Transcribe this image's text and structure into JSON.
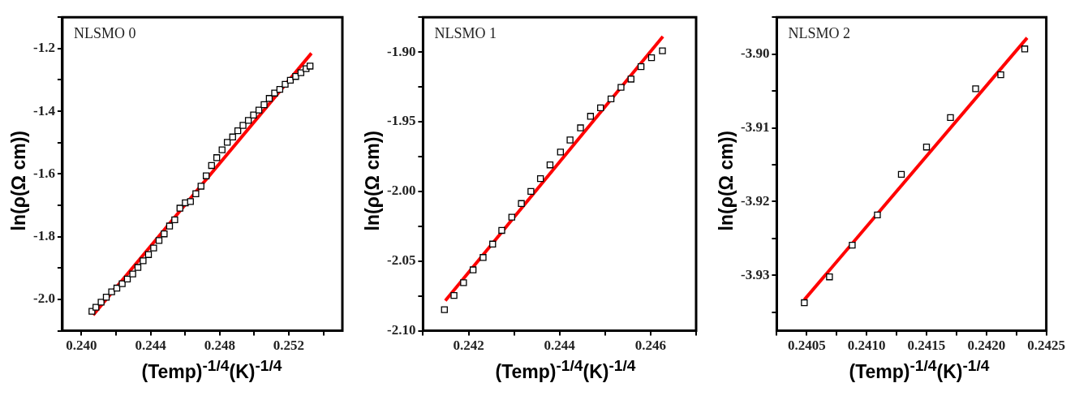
{
  "chart_data": [
    {
      "type": "scatter",
      "xlabel": "(Temp)$^{-1/4}$(K)$^{-1/4}$",
      "ylabel": "ln(ρ(Ω cm))",
      "annotations": [
        "NLSMO 0"
      ],
      "xlim": [
        0.2389,
        0.2551
      ],
      "ylim": [
        -2.1,
        -1.1
      ],
      "xticks": [
        {
          "value": 0.24,
          "label": "0.240"
        },
        {
          "value": 0.242,
          "label": null
        },
        0.244,
        {
          "value": 0.246,
          "label": null
        },
        0.248,
        {
          "value": 0.25,
          "label": null
        },
        0.252,
        {
          "value": 0.254,
          "label": null
        }
      ],
      "yticks": [
        {
          "value": -2.1,
          "label": null
        },
        {
          "value": -2,
          "label": "-2.0"
        },
        {
          "value": -1.9,
          "label": null
        },
        -1.8,
        {
          "value": -1.7,
          "label": null
        },
        -1.6,
        {
          "value": -1.5,
          "label": null
        },
        -1.4,
        {
          "value": -1.3,
          "label": null
        },
        -1.2,
        {
          "value": -1.1,
          "label": null
        }
      ],
      "series": [
        {
          "type": "scatter",
          "marker": "square",
          "color": "#000000",
          "x": [
            0.24061,
            0.24084,
            0.24114,
            0.24144,
            0.24175,
            0.24205,
            0.24236,
            0.24266,
            0.24297,
            0.24327,
            0.24357,
            0.24388,
            0.24418,
            0.24449,
            0.24479,
            0.2451,
            0.2454,
            0.2457,
            0.24601,
            0.24631,
            0.24662,
            0.24692,
            0.24722,
            0.24753,
            0.24783,
            0.24814,
            0.24844,
            0.24875,
            0.24905,
            0.24935,
            0.24966,
            0.24996,
            0.25027,
            0.25057,
            0.25087,
            0.25118,
            0.25148,
            0.25179,
            0.25209,
            0.2524,
            0.2527,
            0.253,
            0.25323
          ],
          "values": [
            -2.038,
            -2.025,
            -2.009,
            -1.993,
            -1.976,
            -1.964,
            -1.95,
            -1.935,
            -1.919,
            -1.898,
            -1.877,
            -1.857,
            -1.836,
            -1.812,
            -1.791,
            -1.766,
            -1.746,
            -1.709,
            -1.692,
            -1.688,
            -1.663,
            -1.639,
            -1.606,
            -1.573,
            -1.548,
            -1.523,
            -1.499,
            -1.482,
            -1.462,
            -1.445,
            -1.429,
            -1.412,
            -1.396,
            -1.379,
            -1.359,
            -1.342,
            -1.33,
            -1.314,
            -1.301,
            -1.289,
            -1.277,
            -1.264,
            -1.256
          ]
        },
        {
          "type": "line",
          "marker": "none",
          "line_style": "solid",
          "color": "#ff0000",
          "x": [
            0.24068,
            0.25331
          ],
          "values": [
            -2.05,
            -1.215
          ]
        }
      ]
    },
    {
      "type": "scatter",
      "xlabel": "(Temp)$^{-1/4}$(K)$^{-1/4}$",
      "ylabel": "ln(ρ(Ω cm))",
      "annotations": [
        "NLSMO 1"
      ],
      "xlim": [
        0.241,
        0.247
      ],
      "ylim": [
        -2.1,
        -1.875
      ],
      "xticks": [
        {
          "value": 0.241,
          "label": null
        },
        0.242,
        {
          "value": 0.243,
          "label": null
        },
        0.244,
        {
          "value": 0.245,
          "label": null
        },
        0.246,
        {
          "value": 0.247,
          "label": null
        }
      ],
      "yticks": [
        {
          "value": -2.1,
          "label": "-2.10"
        },
        {
          "value": -2.075,
          "label": null
        },
        -2.05,
        {
          "value": -2.025,
          "label": null
        },
        {
          "value": -2,
          "label": "-2.00"
        },
        {
          "value": -1.975,
          "label": null
        },
        -1.95,
        {
          "value": -1.925,
          "label": null
        },
        {
          "value": -1.9,
          "label": "-1.90"
        },
        {
          "value": -1.875,
          "label": null
        }
      ],
      "series": [
        {
          "type": "scatter",
          "marker": "square",
          "color": "#000000",
          "x": [
            0.24147,
            0.24168,
            0.24189,
            0.2421,
            0.24232,
            0.24253,
            0.24273,
            0.24295,
            0.24316,
            0.24337,
            0.24358,
            0.24379,
            0.24402,
            0.24423,
            0.24446,
            0.24468,
            0.2449,
            0.24513,
            0.24535,
            0.24557,
            0.24579,
            0.24602,
            0.24626
          ],
          "values": [
            -2.0849,
            -2.0747,
            -2.0655,
            -2.0563,
            -2.0474,
            -2.0378,
            -2.028,
            -2.0185,
            -2.0087,
            -2,
            -1.9908,
            -1.981,
            -1.9718,
            -1.9631,
            -1.9544,
            -1.9461,
            -1.94,
            -1.9336,
            -1.9253,
            -1.9194,
            -1.9105,
            -1.9041,
            -1.8991
          ]
        },
        {
          "type": "line",
          "marker": "none",
          "line_style": "solid",
          "color": "#ff0000",
          "x": [
            0.24149,
            0.24627
          ],
          "values": [
            -2.0784,
            -1.8889
          ]
        }
      ]
    },
    {
      "type": "scatter",
      "xlabel": "(Temp)$^{-1/4}$(K)$^{-1/4}$",
      "ylabel": "ln(ρ(Ω cm))",
      "annotations": [
        "NLSMO 2"
      ],
      "xlim": [
        0.24025,
        0.2425
      ],
      "ylim": [
        -3.9375,
        -3.895
      ],
      "xticks": [
        {
          "value": 0.24025,
          "label": null
        },
        0.2405,
        {
          "value": 0.24075,
          "label": null
        },
        {
          "value": 0.241,
          "label": "0.2410"
        },
        {
          "value": 0.24125,
          "label": null
        },
        0.2415,
        {
          "value": 0.24175,
          "label": null
        },
        {
          "value": 0.242,
          "label": "0.2420"
        },
        {
          "value": 0.24225,
          "label": null
        },
        0.2425
      ],
      "yticks": [
        {
          "value": -3.935,
          "label": null
        },
        -3.93,
        {
          "value": -3.925,
          "label": null
        },
        -3.92,
        {
          "value": -3.915,
          "label": null
        },
        -3.91,
        {
          "value": -3.905,
          "label": null
        },
        {
          "value": -3.9,
          "label": "-3.90"
        },
        {
          "value": -3.895,
          "label": null
        }
      ],
      "series": [
        {
          "type": "scatter",
          "marker": "square",
          "color": "#000000",
          "x": [
            0.24048,
            0.24069,
            0.24088,
            0.24109,
            0.24129,
            0.2415,
            0.2417,
            0.24191,
            0.24212,
            0.24232
          ],
          "values": [
            -3.9337,
            -3.9302,
            -3.9259,
            -3.9218,
            -3.9163,
            -3.9126,
            -3.9086,
            -3.9047,
            -3.9028,
            -3.8993
          ]
        },
        {
          "type": "line",
          "marker": "none",
          "line_style": "solid",
          "color": "#ff0000",
          "x": [
            0.24048,
            0.24234
          ],
          "values": [
            -3.9333,
            -3.8978
          ]
        }
      ]
    }
  ]
}
